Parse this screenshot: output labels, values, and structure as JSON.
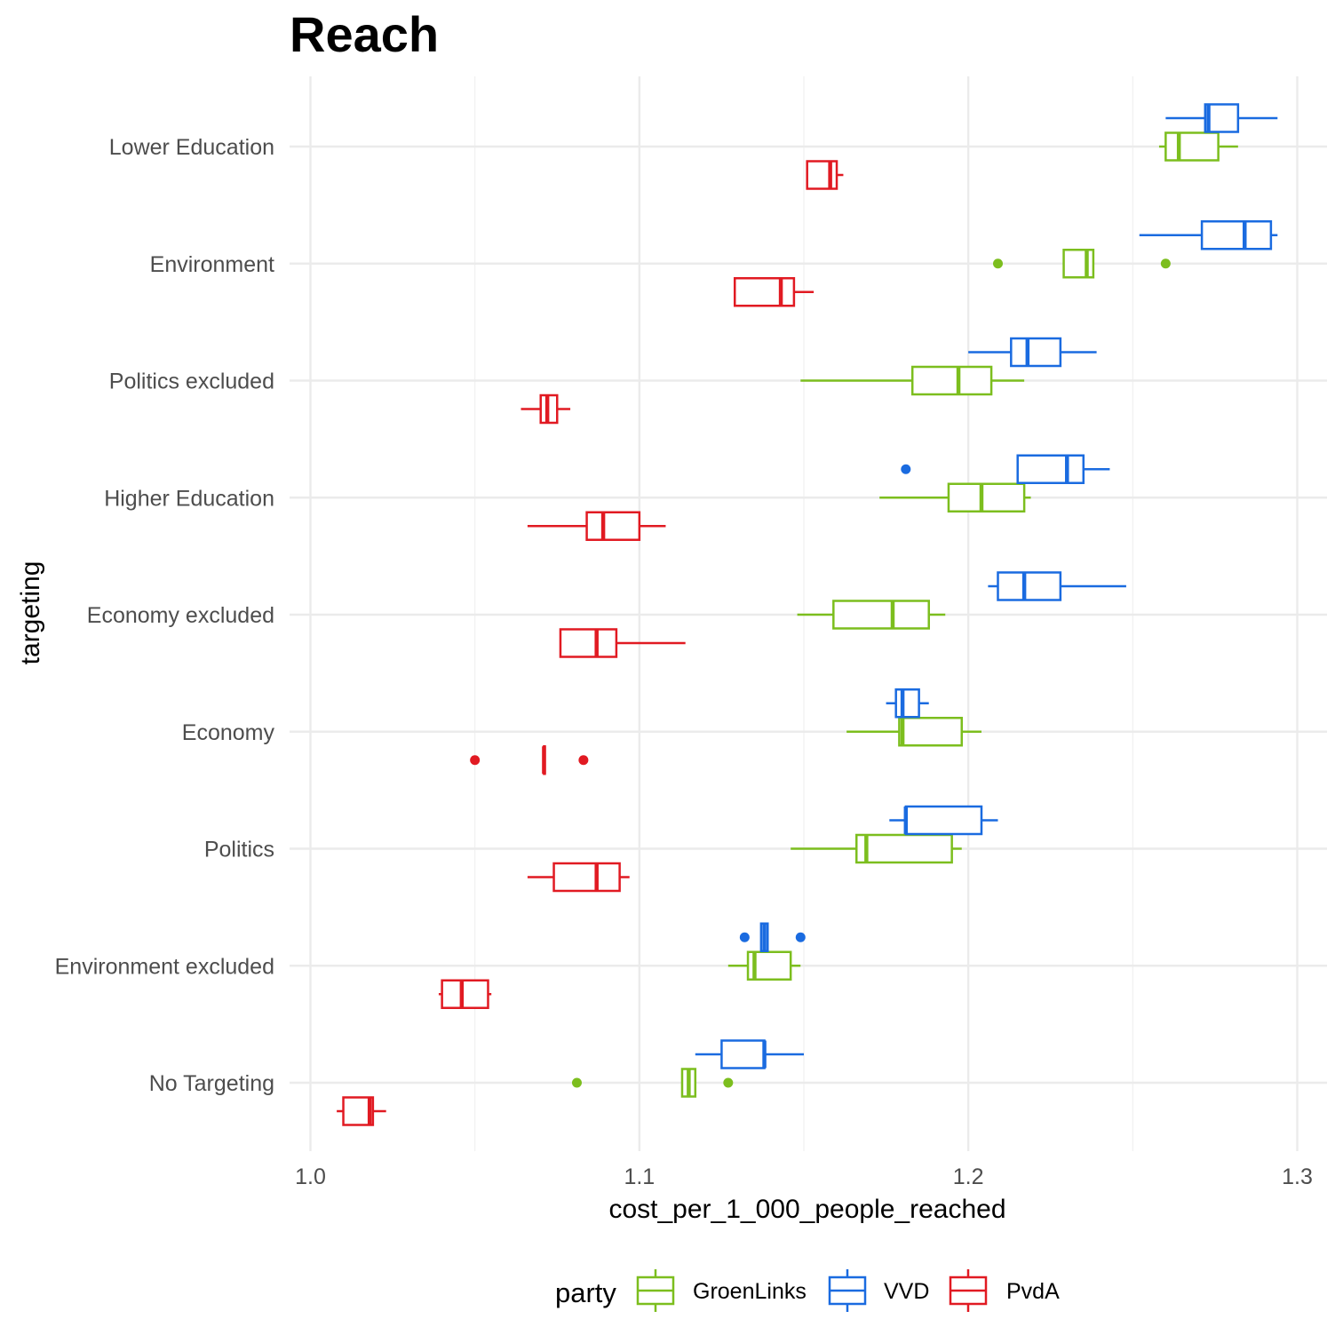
{
  "chart_data": {
    "type": "boxplot",
    "orientation": "horizontal",
    "title": "Reach",
    "xlabel": "cost_per_1_000_people_reached",
    "ylabel": "targeting",
    "xlim": [
      0.99,
      1.31
    ],
    "x_ticks": [
      "1.0",
      "1.1",
      "1.2",
      "1.3"
    ],
    "x_tick_values": [
      1.0,
      1.1,
      1.2,
      1.3
    ],
    "grid": true,
    "legend": {
      "title": "party",
      "placement": "bottom",
      "entries": [
        "GroenLinks",
        "VVD",
        "PvdA"
      ]
    },
    "categories": [
      "No Targeting",
      "Environment excluded",
      "Politics",
      "Economy",
      "Economy excluded",
      "Higher Education",
      "Politics excluded",
      "Environment",
      "Lower Education"
    ],
    "series": [
      {
        "name": "GroenLinks",
        "color": "#7CBE1E",
        "boxes": [
          {
            "whisker_low": 1.113,
            "q1": 1.113,
            "median": 1.115,
            "q3": 1.117,
            "whisker_high": 1.117,
            "outliers": [
              1.081,
              1.127
            ]
          },
          {
            "whisker_low": 1.127,
            "q1": 1.133,
            "median": 1.135,
            "q3": 1.146,
            "whisker_high": 1.149,
            "outliers": []
          },
          {
            "whisker_low": 1.146,
            "q1": 1.166,
            "median": 1.169,
            "q3": 1.195,
            "whisker_high": 1.198,
            "outliers": []
          },
          {
            "whisker_low": 1.163,
            "q1": 1.179,
            "median": 1.18,
            "q3": 1.198,
            "whisker_high": 1.204,
            "outliers": []
          },
          {
            "whisker_low": 1.148,
            "q1": 1.159,
            "median": 1.177,
            "q3": 1.188,
            "whisker_high": 1.193,
            "outliers": []
          },
          {
            "whisker_low": 1.173,
            "q1": 1.194,
            "median": 1.204,
            "q3": 1.217,
            "whisker_high": 1.219,
            "outliers": []
          },
          {
            "whisker_low": 1.149,
            "q1": 1.183,
            "median": 1.197,
            "q3": 1.207,
            "whisker_high": 1.217,
            "outliers": []
          },
          {
            "whisker_low": 1.229,
            "q1": 1.229,
            "median": 1.236,
            "q3": 1.238,
            "whisker_high": 1.238,
            "outliers": [
              1.209,
              1.26
            ]
          },
          {
            "whisker_low": 1.258,
            "q1": 1.26,
            "median": 1.264,
            "q3": 1.276,
            "whisker_high": 1.282,
            "outliers": []
          }
        ]
      },
      {
        "name": "VVD",
        "color": "#1A6BE0",
        "boxes": [
          {
            "whisker_low": 1.117,
            "q1": 1.125,
            "median": 1.138,
            "q3": 1.138,
            "whisker_high": 1.15,
            "outliers": []
          },
          {
            "whisker_low": 1.137,
            "q1": 1.137,
            "median": 1.138,
            "q3": 1.139,
            "whisker_high": 1.139,
            "outliers": [
              1.132,
              1.149
            ]
          },
          {
            "whisker_low": 1.176,
            "q1": 1.181,
            "median": 1.181,
            "q3": 1.204,
            "whisker_high": 1.209,
            "outliers": []
          },
          {
            "whisker_low": 1.175,
            "q1": 1.178,
            "median": 1.18,
            "q3": 1.185,
            "whisker_high": 1.188,
            "outliers": []
          },
          {
            "whisker_low": 1.206,
            "q1": 1.209,
            "median": 1.217,
            "q3": 1.228,
            "whisker_high": 1.248,
            "outliers": []
          },
          {
            "whisker_low": 1.215,
            "q1": 1.215,
            "median": 1.23,
            "q3": 1.235,
            "whisker_high": 1.243,
            "outliers": [
              1.181
            ]
          },
          {
            "whisker_low": 1.2,
            "q1": 1.213,
            "median": 1.218,
            "q3": 1.228,
            "whisker_high": 1.239,
            "outliers": []
          },
          {
            "whisker_low": 1.252,
            "q1": 1.271,
            "median": 1.284,
            "q3": 1.292,
            "whisker_high": 1.294,
            "outliers": []
          },
          {
            "whisker_low": 1.26,
            "q1": 1.272,
            "median": 1.273,
            "q3": 1.282,
            "whisker_high": 1.294,
            "outliers": []
          }
        ]
      },
      {
        "name": "PvdA",
        "color": "#E11A22",
        "boxes": [
          {
            "whisker_low": 1.008,
            "q1": 1.01,
            "median": 1.018,
            "q3": 1.019,
            "whisker_high": 1.023,
            "outliers": []
          },
          {
            "whisker_low": 1.039,
            "q1": 1.04,
            "median": 1.046,
            "q3": 1.054,
            "whisker_high": 1.055,
            "outliers": []
          },
          {
            "whisker_low": 1.066,
            "q1": 1.074,
            "median": 1.087,
            "q3": 1.094,
            "whisker_high": 1.097,
            "outliers": []
          },
          {
            "whisker_low": 1.071,
            "q1": 1.071,
            "median": 1.071,
            "q3": 1.071,
            "whisker_high": 1.071,
            "outliers": [
              1.05,
              1.083
            ]
          },
          {
            "whisker_low": 1.076,
            "q1": 1.076,
            "median": 1.087,
            "q3": 1.093,
            "whisker_high": 1.114,
            "outliers": []
          },
          {
            "whisker_low": 1.066,
            "q1": 1.084,
            "median": 1.089,
            "q3": 1.1,
            "whisker_high": 1.108,
            "outliers": []
          },
          {
            "whisker_low": 1.064,
            "q1": 1.07,
            "median": 1.072,
            "q3": 1.075,
            "whisker_high": 1.079,
            "outliers": []
          },
          {
            "whisker_low": 1.129,
            "q1": 1.129,
            "median": 1.143,
            "q3": 1.147,
            "whisker_high": 1.153,
            "outliers": []
          },
          {
            "whisker_low": 1.151,
            "q1": 1.151,
            "median": 1.158,
            "q3": 1.16,
            "whisker_high": 1.162,
            "outliers": []
          }
        ]
      }
    ]
  }
}
